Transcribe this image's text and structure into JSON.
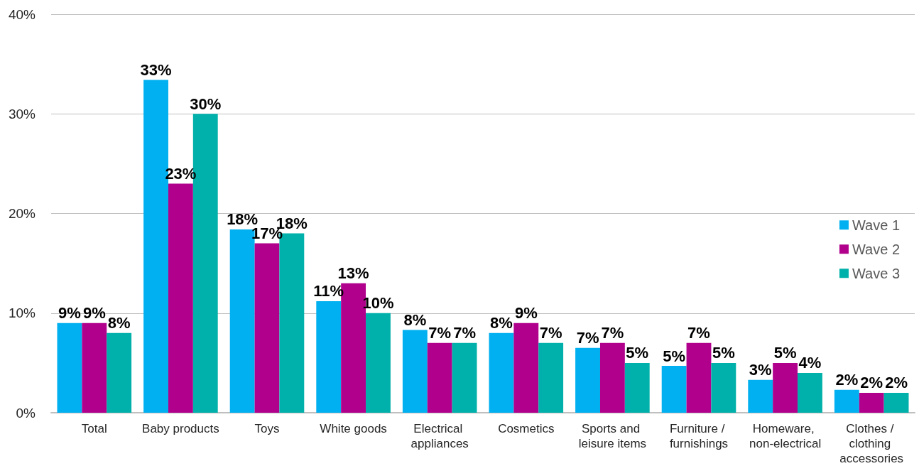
{
  "chart_data": {
    "type": "bar",
    "categories": [
      "Total",
      "Baby products",
      "Toys",
      "White goods",
      "Electrical appliances",
      "Cosmetics",
      "Sports and leisure items",
      "Furniture / furnishings",
      "Homeware, non-electrical",
      "Clothes / clothing accessories"
    ],
    "series": [
      {
        "name": "Wave 1",
        "color": "#00b0f0",
        "values": [
          9.0,
          33.4,
          18.4,
          11.2,
          8.3,
          8.0,
          6.5,
          4.7,
          3.3,
          2.3
        ],
        "value_labels": [
          "9%",
          "33%",
          "18%",
          "11%",
          "8%",
          "8%",
          "7%",
          "5%",
          "3%",
          "2%"
        ]
      },
      {
        "name": "Wave 2",
        "color": "#b0008c",
        "values": [
          9.0,
          23.0,
          17.0,
          13.0,
          7.0,
          9.0,
          7.0,
          7.0,
          5.0,
          2.0
        ],
        "value_labels": [
          "9%",
          "23%",
          "17%",
          "13%",
          "7%",
          "9%",
          "7%",
          "7%",
          "5%",
          "2%"
        ]
      },
      {
        "name": "Wave 3",
        "color": "#00b0aa",
        "values": [
          8.0,
          30.0,
          18.0,
          10.0,
          7.0,
          7.0,
          5.0,
          5.0,
          4.0,
          2.0
        ],
        "value_labels": [
          "8%",
          "30%",
          "18%",
          "10%",
          "7%",
          "7%",
          "5%",
          "5%",
          "4%",
          "2%"
        ]
      }
    ],
    "ylim": [
      0,
      40
    ],
    "yticks": [
      {
        "value": 0,
        "label": "0%"
      },
      {
        "value": 10,
        "label": "10%"
      },
      {
        "value": 20,
        "label": "20%"
      },
      {
        "value": 30,
        "label": "30%"
      },
      {
        "value": 40,
        "label": "40%"
      }
    ],
    "grid": "y",
    "legend": "right"
  }
}
